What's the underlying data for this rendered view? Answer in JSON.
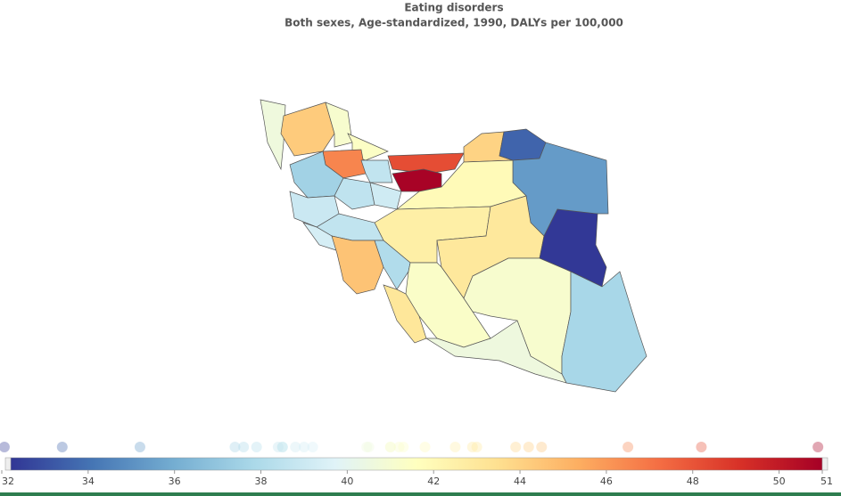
{
  "chart_data": {
    "type": "choropleth",
    "title": "Eating disorders",
    "subtitle": "Both sexes, Age-standardized, 1990, DALYs per 100,000",
    "values": [
      40.5,
      44.2,
      41,
      41.3,
      46.5,
      37.4,
      38.5,
      48.2,
      50.9,
      38.4,
      38.8,
      39,
      43.9,
      33.4,
      35.2,
      41.8,
      42.5,
      38.5,
      39.2,
      44.5,
      37.9,
      42.9,
      32.06,
      41.2,
      41,
      37.6,
      43,
      40.45
    ],
    "range": [
      32,
      51
    ],
    "ticks": [
      32,
      34,
      36,
      38,
      40,
      42,
      44,
      46,
      48,
      50,
      51
    ],
    "colors": [
      "#313695",
      "#4575b4",
      "#74add1",
      "#abd9e9",
      "#e0f3f8",
      "#ffffbf",
      "#fee090",
      "#fdae61",
      "#f46d43",
      "#d73027",
      "#a50026"
    ]
  }
}
